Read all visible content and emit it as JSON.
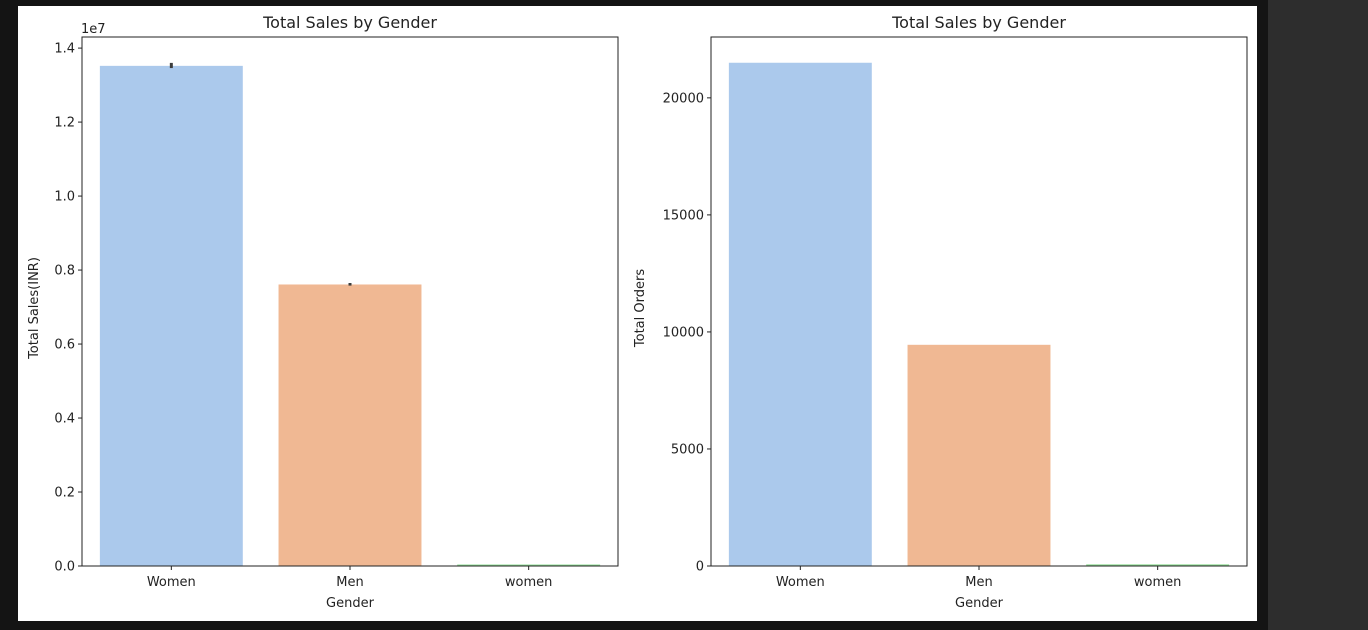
{
  "chart_data": [
    {
      "type": "bar",
      "title": "Total Sales by Gender",
      "xlabel": "Gender",
      "ylabel": "Total Sales(INR)",
      "offset_label": "1e7",
      "categories": [
        "Women",
        "Men",
        "women"
      ],
      "values": [
        13520000,
        7610000,
        40000
      ],
      "error_bars": [
        [
          13460000,
          13600000
        ],
        [
          7580000,
          7650000
        ],
        null
      ],
      "ylim": [
        0,
        14300000
      ],
      "yticks": [
        0,
        2000000,
        4000000,
        6000000,
        8000000,
        10000000,
        12000000,
        14000000
      ],
      "yticklabels": [
        "0.0",
        "0.2",
        "0.4",
        "0.6",
        "0.8",
        "1.0",
        "1.2",
        "1.4"
      ],
      "colors": [
        "#abc9ec",
        "#f0b893",
        "#8fdc94"
      ],
      "grid": false
    },
    {
      "type": "bar",
      "title": "Total Sales by Gender",
      "xlabel": "Gender",
      "ylabel": "Total Orders",
      "categories": [
        "Women",
        "Men",
        "women"
      ],
      "values": [
        21500,
        9450,
        70
      ],
      "ylim": [
        0,
        22600
      ],
      "yticks": [
        0,
        5000,
        10000,
        15000,
        20000
      ],
      "yticklabels": [
        "0",
        "5000",
        "10000",
        "15000",
        "20000"
      ],
      "colors": [
        "#abc9ec",
        "#f0b893",
        "#8fdc94"
      ],
      "grid": false
    }
  ]
}
